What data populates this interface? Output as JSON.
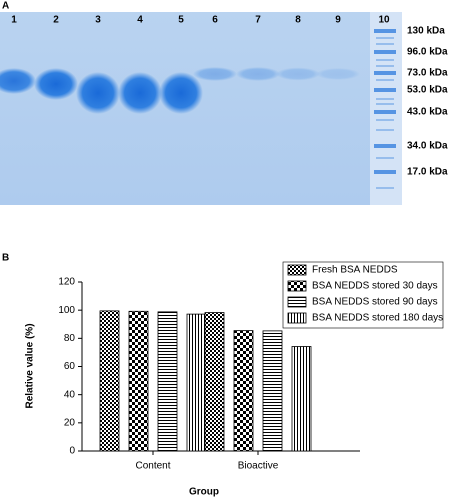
{
  "gel": {
    "panel_label": "A",
    "lanes": [
      "1",
      "2",
      "3",
      "4",
      "5",
      "6",
      "7",
      "8",
      "9",
      "10"
    ],
    "markers": [
      "130 kDa",
      "96.0 kDa",
      "73.0 kDa",
      "53.0 kDa",
      "43.0 kDa",
      "34.0 kDa",
      "17.0 kDa"
    ]
  },
  "chart_data": {
    "type": "bar",
    "panel_label": "B",
    "x_label": "Group",
    "y_label": "Relative value (%)",
    "categories": [
      "Content",
      "Bioactive"
    ],
    "series": [
      {
        "name": "Fresh BSA NEDDS",
        "color": "#000000",
        "pattern": "fine-check",
        "values": [
          99.5,
          98.3
        ]
      },
      {
        "name": "BSA NEDDS stored 30 days",
        "color": "#000000",
        "pattern": "check",
        "values": [
          99.2,
          85.5
        ]
      },
      {
        "name": "BSA NEDDS stored 90 days",
        "color": "#000000",
        "pattern": "horizontal",
        "values": [
          98.8,
          85.3
        ]
      },
      {
        "name": "BSA NEDDS stored 180 days",
        "color": "#000000",
        "pattern": "vertical",
        "values": [
          97.2,
          74.2
        ]
      }
    ],
    "ylim": [
      0,
      120
    ],
    "yticks": [
      0,
      20,
      40,
      60,
      80,
      100,
      120
    ],
    "grid": false,
    "legend": "top-right"
  }
}
